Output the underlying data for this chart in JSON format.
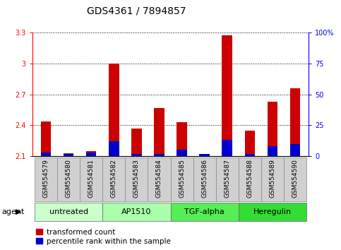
{
  "title": "GDS4361 / 7894857",
  "samples": [
    "GSM554579",
    "GSM554580",
    "GSM554581",
    "GSM554582",
    "GSM554583",
    "GSM554584",
    "GSM554585",
    "GSM554586",
    "GSM554587",
    "GSM554588",
    "GSM554589",
    "GSM554590"
  ],
  "red_values": [
    2.44,
    2.13,
    2.15,
    3.0,
    2.37,
    2.57,
    2.43,
    2.1,
    3.27,
    2.35,
    2.63,
    2.76
  ],
  "blue_percentiles": [
    3,
    2,
    3,
    12,
    2,
    2,
    5,
    2,
    13,
    2,
    8,
    10
  ],
  "base": 2.1,
  "ylim_left": [
    2.1,
    3.3
  ],
  "ylim_right": [
    0,
    100
  ],
  "yticks_left": [
    2.1,
    2.4,
    2.7,
    3.0,
    3.3
  ],
  "yticks_right": [
    0,
    25,
    50,
    75,
    100
  ],
  "ytick_labels_left": [
    "2.1",
    "2.4",
    "2.7",
    "3",
    "3.3"
  ],
  "ytick_labels_right": [
    "0",
    "25",
    "50",
    "75",
    "100%"
  ],
  "groups": [
    {
      "label": "untreated",
      "indices": [
        0,
        1,
        2
      ],
      "color": "#ccffcc"
    },
    {
      "label": "AP1510",
      "indices": [
        3,
        4,
        5
      ],
      "color": "#aaffaa"
    },
    {
      "label": "TGF-alpha",
      "indices": [
        6,
        7,
        8
      ],
      "color": "#55ee55"
    },
    {
      "label": "Heregulin",
      "indices": [
        9,
        10,
        11
      ],
      "color": "#33dd33"
    }
  ],
  "red_color": "#cc0000",
  "blue_color": "#0000cc",
  "bar_width": 0.45,
  "bg_plot": "#ffffff",
  "bg_xtick": "#d0d0d0",
  "title_fontsize": 10,
  "tick_fontsize": 7,
  "label_fontsize": 8,
  "legend_fontsize": 7.5,
  "agent_label": "agent",
  "legend_red": "transformed count",
  "legend_blue": "percentile rank within the sample"
}
